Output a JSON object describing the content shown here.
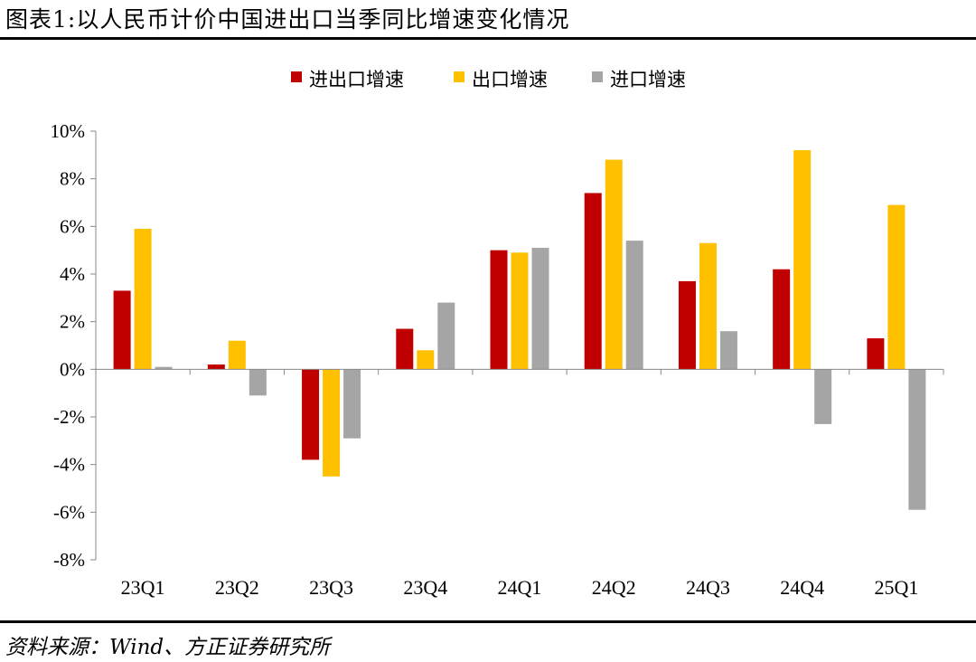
{
  "header": {
    "title": "图表1:以人民币计价中国进出口当季同比增速变化情况"
  },
  "footer": {
    "source": "资料来源：Wind、方正证券研究所"
  },
  "colors": {
    "series_0": "#C00000",
    "series_1": "#FFC000",
    "series_2": "#A5A5A5"
  },
  "chart_data": {
    "type": "bar",
    "title": "",
    "xlabel": "",
    "ylabel": "",
    "categories": [
      "23Q1",
      "23Q2",
      "23Q3",
      "23Q4",
      "24Q1",
      "24Q2",
      "24Q3",
      "24Q4",
      "25Q1"
    ],
    "series": [
      {
        "name": "进出口增速",
        "values": [
          3.3,
          0.2,
          -3.8,
          1.7,
          5.0,
          7.4,
          3.7,
          4.2,
          1.3
        ]
      },
      {
        "name": "出口增速",
        "values": [
          5.9,
          1.2,
          -4.5,
          0.8,
          4.9,
          8.8,
          5.3,
          9.2,
          6.9
        ]
      },
      {
        "name": "进口增速",
        "values": [
          0.1,
          -1.1,
          -2.9,
          2.8,
          5.1,
          5.4,
          1.6,
          -2.3,
          -5.9
        ]
      }
    ],
    "ylim": [
      -8,
      10
    ],
    "yticks": [
      "10%",
      "8%",
      "6%",
      "4%",
      "2%",
      "0%",
      "-2%",
      "-4%",
      "-6%",
      "-8%"
    ],
    "grid": false,
    "legend_position": "top-center"
  }
}
